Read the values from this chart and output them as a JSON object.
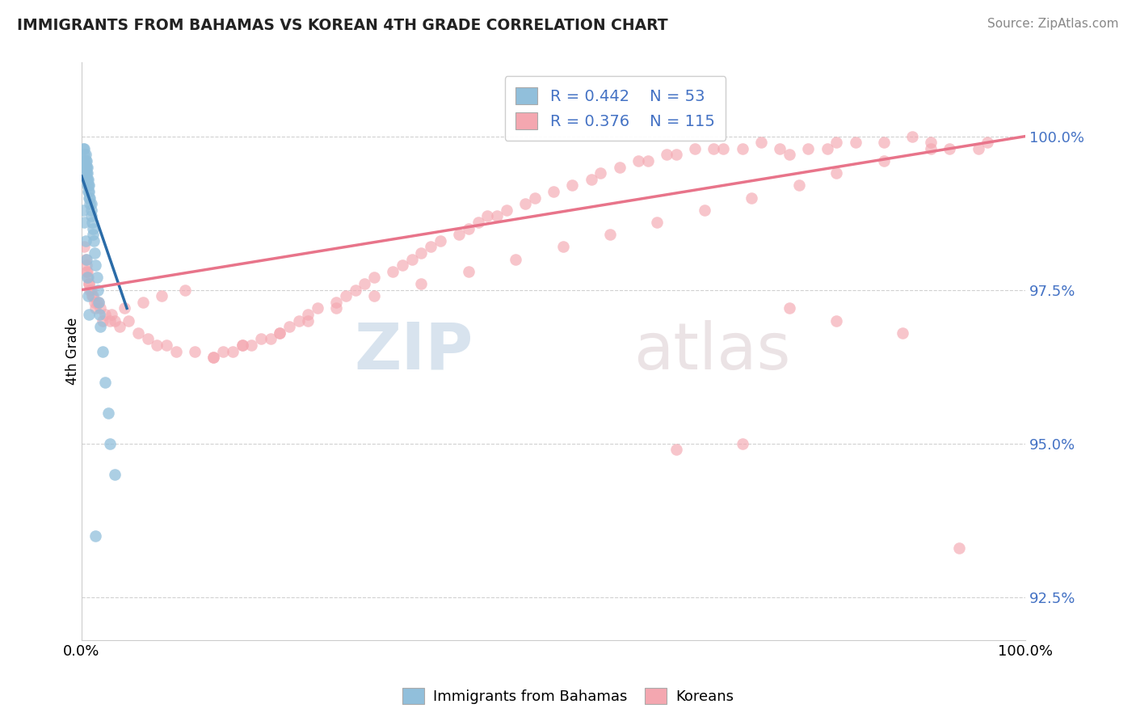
{
  "title": "IMMIGRANTS FROM BAHAMAS VS KOREAN 4TH GRADE CORRELATION CHART",
  "source": "Source: ZipAtlas.com",
  "ylabel": "4th Grade",
  "y_tick_values": [
    92.5,
    95.0,
    97.5,
    100.0
  ],
  "xlim": [
    0.0,
    100.0
  ],
  "ylim": [
    91.8,
    101.2
  ],
  "legend_label1": "Immigrants from Bahamas",
  "legend_label2": "Koreans",
  "r1": 0.442,
  "n1": 53,
  "r2": 0.376,
  "n2": 115,
  "color_blue": "#91bfdb",
  "color_pink": "#f4a7b0",
  "color_blue_line": "#2b6ca8",
  "color_pink_line": "#e8748a",
  "watermark_zip": "ZIP",
  "watermark_atlas": "atlas",
  "blue_line_x0": 0.0,
  "blue_line_y0": 99.35,
  "blue_line_x1": 4.8,
  "blue_line_y1": 97.2,
  "pink_line_x0": 0.0,
  "pink_line_y0": 97.5,
  "pink_line_x1": 100.0,
  "pink_line_y1": 100.0,
  "blue_scatter_x": [
    0.2,
    0.2,
    0.3,
    0.3,
    0.3,
    0.3,
    0.4,
    0.4,
    0.4,
    0.4,
    0.5,
    0.5,
    0.5,
    0.5,
    0.6,
    0.6,
    0.6,
    0.6,
    0.7,
    0.7,
    0.7,
    0.8,
    0.8,
    0.8,
    0.9,
    0.9,
    1.0,
    1.0,
    1.0,
    1.1,
    1.2,
    1.2,
    1.3,
    1.4,
    1.5,
    1.6,
    1.7,
    1.8,
    1.9,
    2.0,
    2.2,
    2.5,
    2.8,
    3.0,
    3.5,
    0.2,
    0.3,
    0.4,
    0.5,
    0.6,
    0.7,
    0.8,
    1.5
  ],
  "blue_scatter_y": [
    99.6,
    99.8,
    99.5,
    99.6,
    99.7,
    99.8,
    99.4,
    99.5,
    99.6,
    99.7,
    99.3,
    99.4,
    99.5,
    99.6,
    99.2,
    99.3,
    99.4,
    99.5,
    99.1,
    99.2,
    99.3,
    99.0,
    99.1,
    99.2,
    98.9,
    99.0,
    98.7,
    98.8,
    98.9,
    98.6,
    98.4,
    98.5,
    98.3,
    98.1,
    97.9,
    97.7,
    97.5,
    97.3,
    97.1,
    96.9,
    96.5,
    96.0,
    95.5,
    95.0,
    94.5,
    98.8,
    98.6,
    98.3,
    98.0,
    97.7,
    97.4,
    97.1,
    93.5
  ],
  "pink_scatter_x": [
    0.3,
    0.4,
    0.5,
    0.6,
    0.7,
    0.8,
    0.9,
    1.0,
    1.2,
    1.4,
    1.6,
    1.8,
    2.0,
    2.5,
    3.0,
    3.5,
    4.0,
    5.0,
    6.0,
    7.0,
    8.0,
    9.0,
    10.0,
    12.0,
    14.0,
    15.0,
    16.0,
    17.0,
    18.0,
    19.0,
    20.0,
    21.0,
    22.0,
    23.0,
    24.0,
    25.0,
    27.0,
    28.0,
    29.0,
    30.0,
    31.0,
    33.0,
    34.0,
    35.0,
    36.0,
    37.0,
    38.0,
    40.0,
    41.0,
    42.0,
    43.0,
    44.0,
    45.0,
    47.0,
    48.0,
    50.0,
    52.0,
    54.0,
    55.0,
    57.0,
    59.0,
    60.0,
    62.0,
    63.0,
    65.0,
    67.0,
    68.0,
    70.0,
    72.0,
    74.0,
    75.0,
    77.0,
    79.0,
    80.0,
    82.0,
    85.0,
    88.0,
    90.0,
    92.0,
    95.0,
    0.5,
    0.8,
    1.1,
    1.5,
    2.2,
    3.2,
    4.5,
    6.5,
    8.5,
    11.0,
    14.0,
    17.0,
    21.0,
    24.0,
    27.0,
    31.0,
    36.0,
    41.0,
    46.0,
    51.0,
    56.0,
    61.0,
    66.0,
    71.0,
    76.0,
    80.0,
    85.0,
    90.0,
    63.0,
    70.0,
    75.0,
    80.0,
    87.0,
    93.0,
    96.0
  ],
  "pink_scatter_y": [
    98.2,
    98.0,
    97.9,
    97.8,
    97.7,
    97.6,
    97.5,
    97.5,
    97.4,
    97.3,
    97.3,
    97.3,
    97.2,
    97.1,
    97.0,
    97.0,
    96.9,
    97.0,
    96.8,
    96.7,
    96.6,
    96.6,
    96.5,
    96.5,
    96.4,
    96.5,
    96.5,
    96.6,
    96.6,
    96.7,
    96.7,
    96.8,
    96.9,
    97.0,
    97.1,
    97.2,
    97.3,
    97.4,
    97.5,
    97.6,
    97.7,
    97.8,
    97.9,
    98.0,
    98.1,
    98.2,
    98.3,
    98.4,
    98.5,
    98.6,
    98.7,
    98.7,
    98.8,
    98.9,
    99.0,
    99.1,
    99.2,
    99.3,
    99.4,
    99.5,
    99.6,
    99.6,
    99.7,
    99.7,
    99.8,
    99.8,
    99.8,
    99.8,
    99.9,
    99.8,
    99.7,
    99.8,
    99.8,
    99.9,
    99.9,
    99.9,
    100.0,
    99.9,
    99.8,
    99.8,
    97.8,
    97.6,
    97.4,
    97.2,
    97.0,
    97.1,
    97.2,
    97.3,
    97.4,
    97.5,
    96.4,
    96.6,
    96.8,
    97.0,
    97.2,
    97.4,
    97.6,
    97.8,
    98.0,
    98.2,
    98.4,
    98.6,
    98.8,
    99.0,
    99.2,
    99.4,
    99.6,
    99.8,
    94.9,
    95.0,
    97.2,
    97.0,
    96.8,
    93.3,
    99.9
  ]
}
